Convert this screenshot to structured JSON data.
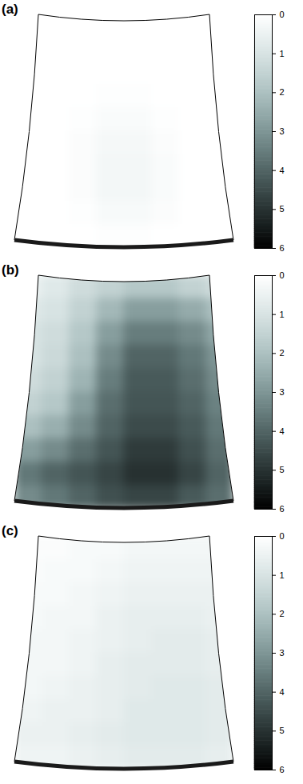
{
  "chart_data": [
    {
      "type": "heatmap",
      "title": "(a)",
      "tick_labels": false,
      "cells": [
        [
          0,
          0,
          0,
          0,
          0,
          0,
          0,
          0
        ],
        [
          0,
          0,
          0,
          0,
          0,
          0,
          0,
          0
        ],
        [
          0,
          0,
          0,
          0,
          0,
          0,
          0,
          0
        ],
        [
          0,
          0,
          0,
          0.05,
          0.05,
          0,
          0,
          0
        ],
        [
          0,
          0,
          0.05,
          0.15,
          0.15,
          0.05,
          0,
          0
        ],
        [
          0,
          0,
          0.1,
          0.25,
          0.25,
          0.1,
          0,
          0
        ],
        [
          0,
          0,
          0.1,
          0.3,
          0.3,
          0.15,
          0,
          0
        ],
        [
          0,
          0,
          0.1,
          0.3,
          0.3,
          0.15,
          0,
          0
        ],
        [
          0,
          0,
          0.05,
          0.2,
          0.2,
          0.1,
          0,
          0
        ],
        [
          0,
          0,
          0,
          0.05,
          0.05,
          0,
          0,
          0
        ]
      ],
      "colorbar": {
        "range": [
          0,
          6
        ],
        "ticks": [
          0,
          1,
          2,
          3,
          4,
          5,
          6
        ]
      }
    },
    {
      "type": "heatmap",
      "title": "(b)",
      "tick_labels": false,
      "cells": [
        [
          0.5,
          0.8,
          1.2,
          1.5,
          1.8,
          1.8,
          1.5,
          1.2
        ],
        [
          0.8,
          1.0,
          1.5,
          2.2,
          2.8,
          2.8,
          2.5,
          2.0
        ],
        [
          1.0,
          1.2,
          1.8,
          2.8,
          3.5,
          3.5,
          3.2,
          2.6
        ],
        [
          1.0,
          1.3,
          2.0,
          3.2,
          4.0,
          4.0,
          3.6,
          3.0
        ],
        [
          1.2,
          1.5,
          2.3,
          3.5,
          4.2,
          4.2,
          3.8,
          3.2
        ],
        [
          1.5,
          1.8,
          2.8,
          3.8,
          4.3,
          4.3,
          4.0,
          3.4
        ],
        [
          2.0,
          2.4,
          3.2,
          4.0,
          4.5,
          4.5,
          4.2,
          3.6
        ],
        [
          2.8,
          3.2,
          3.8,
          4.3,
          4.8,
          4.8,
          4.4,
          3.8
        ],
        [
          3.6,
          4.0,
          4.3,
          4.6,
          5.0,
          5.0,
          4.6,
          4.0
        ],
        [
          3.2,
          3.6,
          4.0,
          4.4,
          4.6,
          4.6,
          4.2,
          3.8
        ]
      ],
      "colorbar": {
        "range": [
          0,
          6
        ],
        "ticks": [
          0,
          1,
          2,
          3,
          4,
          5,
          6
        ]
      }
    },
    {
      "type": "heatmap",
      "title": "(c)",
      "tick_labels": false,
      "cells": [
        [
          0.1,
          0.1,
          0.2,
          0.2,
          0.3,
          0.3,
          0.3,
          0.3
        ],
        [
          0.1,
          0.2,
          0.2,
          0.3,
          0.4,
          0.4,
          0.4,
          0.4
        ],
        [
          0.2,
          0.2,
          0.3,
          0.4,
          0.5,
          0.5,
          0.5,
          0.5
        ],
        [
          0.2,
          0.3,
          0.3,
          0.5,
          0.6,
          0.6,
          0.6,
          0.5
        ],
        [
          0.3,
          0.3,
          0.4,
          0.5,
          0.6,
          0.7,
          0.7,
          0.6
        ],
        [
          0.3,
          0.3,
          0.4,
          0.6,
          0.7,
          0.7,
          0.7,
          0.6
        ],
        [
          0.3,
          0.4,
          0.5,
          0.6,
          0.7,
          0.8,
          0.8,
          0.7
        ],
        [
          0.4,
          0.5,
          0.5,
          0.6,
          0.8,
          0.8,
          0.8,
          0.7
        ],
        [
          0.5,
          0.5,
          0.6,
          0.7,
          0.8,
          0.8,
          0.8,
          0.7
        ],
        [
          0.4,
          0.4,
          0.5,
          0.6,
          0.7,
          0.7,
          0.7,
          0.6
        ]
      ],
      "colorbar": {
        "range": [
          0,
          6
        ],
        "ticks": [
          0,
          1,
          2,
          3,
          4,
          5,
          6
        ]
      }
    }
  ]
}
